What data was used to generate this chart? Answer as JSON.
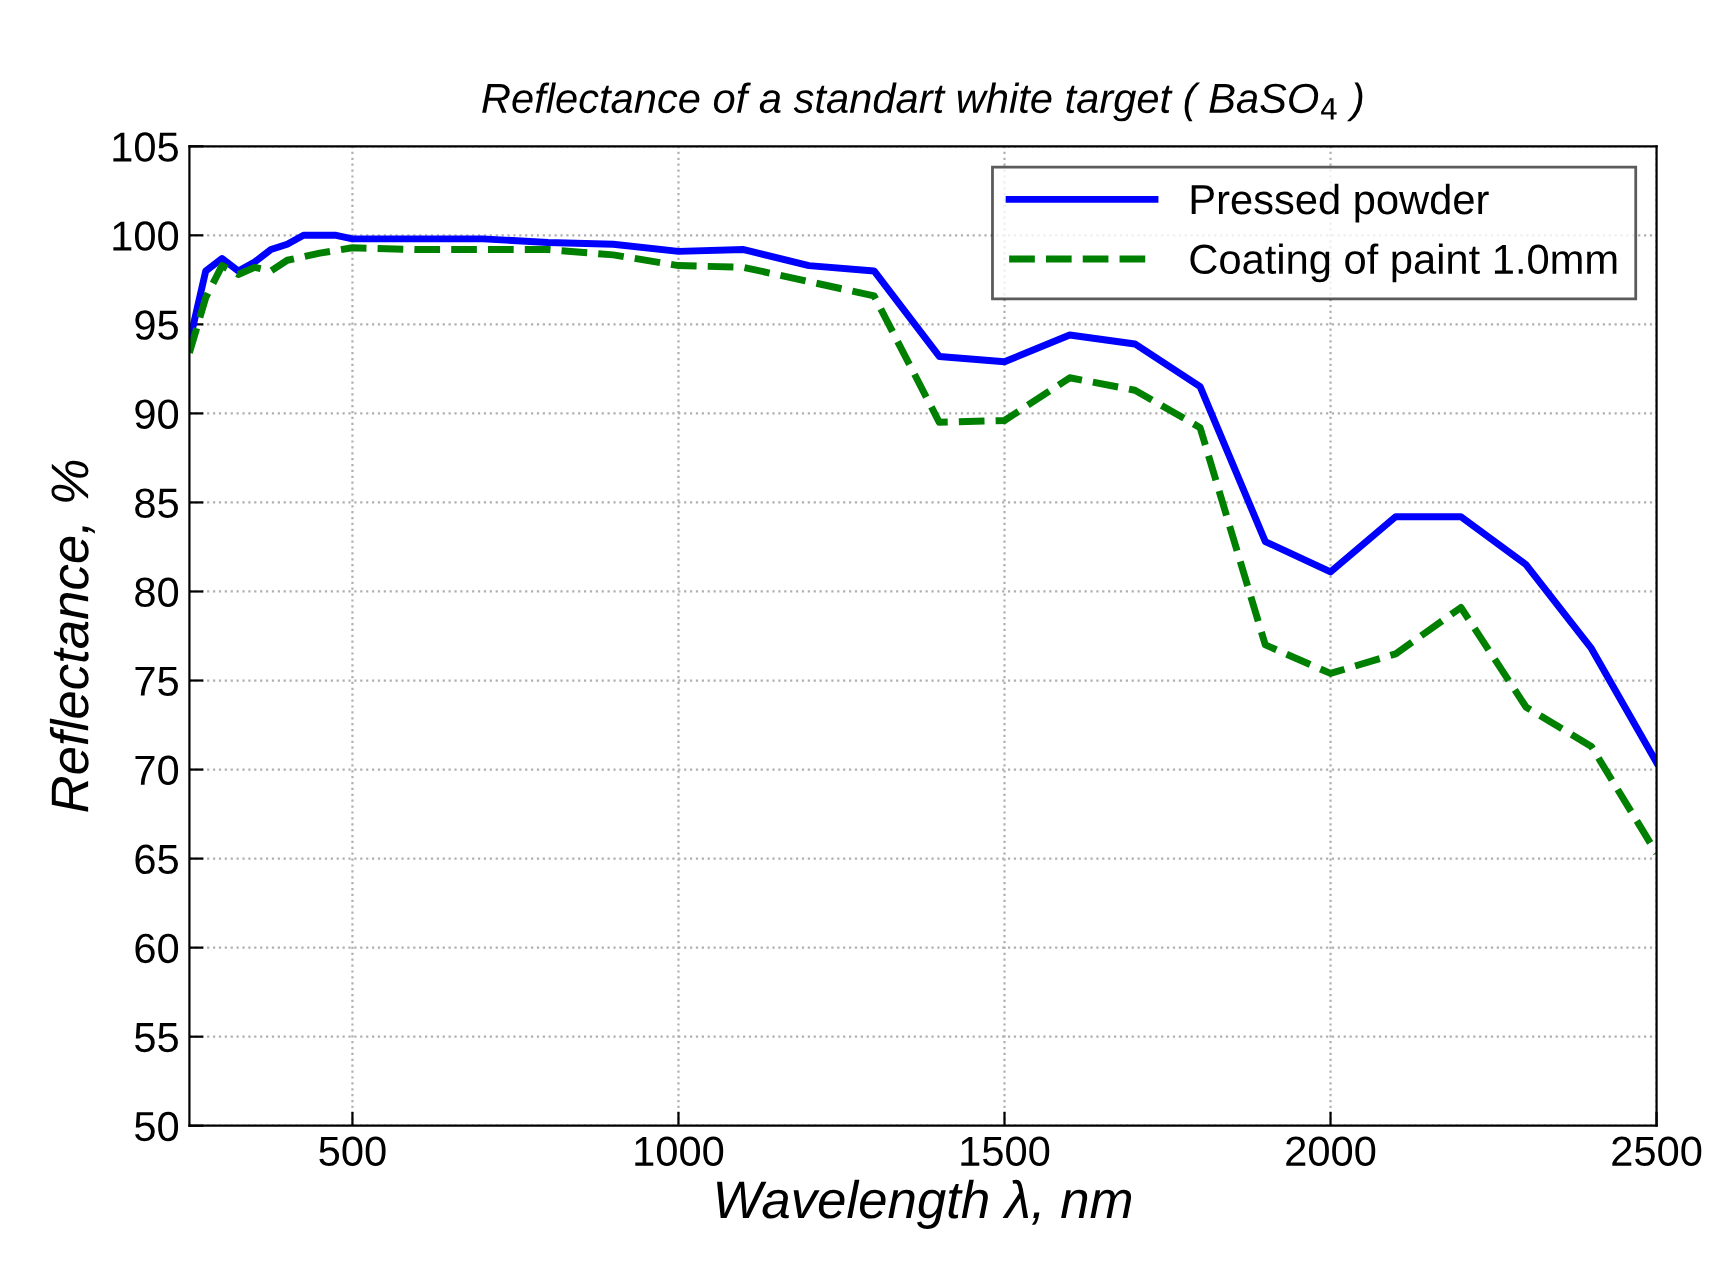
{
  "chart_data": {
    "type": "line",
    "title": "Reflectance of a standart white target ( BaSO$_{4}$ )",
    "xlabel": "Wavelength λ, nm",
    "ylabel": "Reflectance, %",
    "xlim": [
      250,
      2500
    ],
    "xticks": [
      500,
      1000,
      1500,
      2000,
      2500
    ],
    "ylim": [
      50,
      105
    ],
    "yticks": [
      50,
      55,
      60,
      65,
      70,
      75,
      80,
      85,
      90,
      95,
      100,
      105
    ],
    "grid": true,
    "legend": "top right",
    "series": [
      {
        "name": "Pressed powder",
        "color": "#0000ff",
        "line_style": "solid",
        "x": [
          250,
          275,
          300,
          325,
          350,
          375,
          400,
          425,
          475,
          500,
          700,
          800,
          900,
          1000,
          1100,
          1200,
          1300,
          1400,
          1500,
          1600,
          1700,
          1800,
          1900,
          2000,
          2100,
          2200,
          2300,
          2400,
          2500
        ],
        "values": [
          94,
          98,
          98.7,
          98,
          98.5,
          99.2,
          99.5,
          100,
          100,
          99.8,
          99.8,
          99.6,
          99.5,
          99.1,
          99.2,
          98.3,
          98,
          93.2,
          92.9,
          94.4,
          93.9,
          91.5,
          82.8,
          81.1,
          84.2,
          84.2,
          81.5,
          76.8,
          70.4
        ]
      },
      {
        "name": "Coating of paint 1.0mm",
        "color": "#008000",
        "line_style": "dashed",
        "x": [
          250,
          275,
          300,
          325,
          350,
          375,
          400,
          450,
          500,
          600,
          800,
          900,
          1000,
          1100,
          1200,
          1300,
          1400,
          1500,
          1600,
          1700,
          1800,
          1900,
          2000,
          2100,
          2200,
          2300,
          2400,
          2500
        ],
        "values": [
          93.4,
          96.5,
          98.3,
          97.8,
          98.2,
          98,
          98.6,
          99,
          99.3,
          99.2,
          99.2,
          98.9,
          98.3,
          98.2,
          97.4,
          96.6,
          89.5,
          89.6,
          92,
          91.3,
          89.2,
          77,
          75.4,
          76.5,
          79.1,
          73.5,
          71.3,
          65.3
        ]
      }
    ]
  }
}
